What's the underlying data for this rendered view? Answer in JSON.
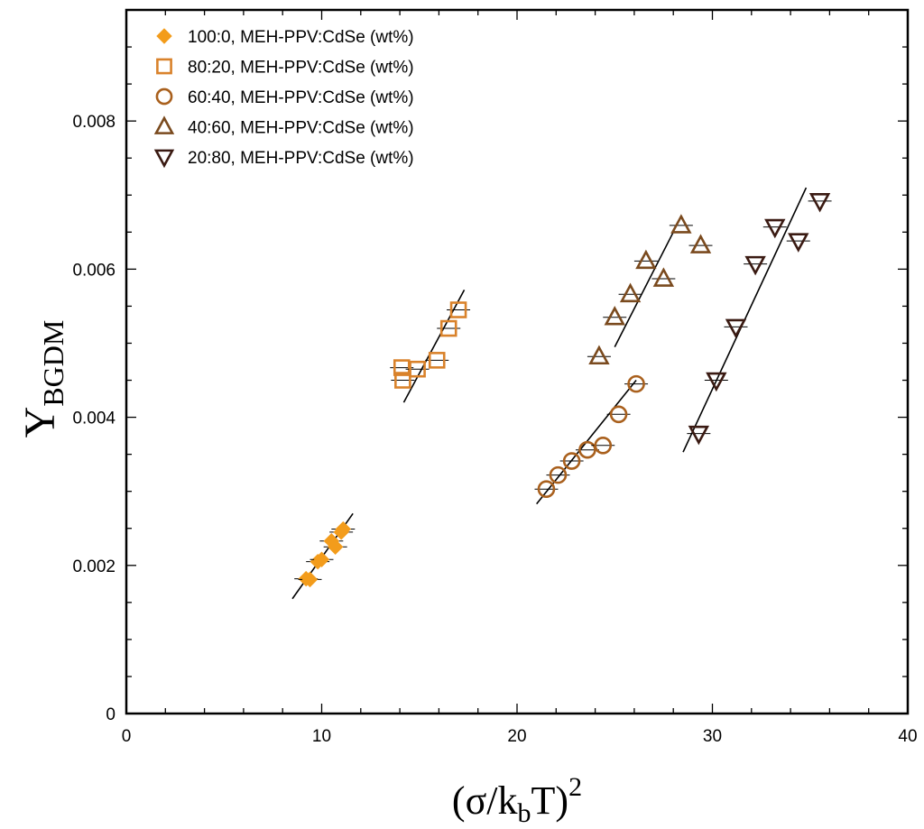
{
  "chart_data": {
    "type": "scatter",
    "title": "",
    "xlabel": {
      "main": "(σ/k",
      "sub": "b",
      "tail": "T)",
      "sup": "2"
    },
    "ylabel": {
      "main": "Υ",
      "sub": "BGDM"
    },
    "xlim": [
      0,
      40
    ],
    "ylim": [
      0,
      0.0095
    ],
    "x_ticks": [
      0,
      10,
      20,
      30,
      40
    ],
    "x_tick_labels": [
      "0",
      "10",
      "20",
      "30",
      "40"
    ],
    "y_ticks": [
      0,
      0.002,
      0.004,
      0.006,
      0.008
    ],
    "y_tick_labels": [
      "0",
      "0.002",
      "0.004",
      "0.006",
      "0.008"
    ],
    "legend_position": "top-left",
    "series": [
      {
        "name": "100:0, MEH-PPV:CdSe (wt%)",
        "marker": "diamond",
        "color": "#F39C1B",
        "filled": true,
        "points": [
          [
            9.2,
            0.00182
          ],
          [
            9.4,
            0.00181
          ],
          [
            9.8,
            0.00205
          ],
          [
            10.0,
            0.00208
          ],
          [
            10.5,
            0.00233
          ],
          [
            10.7,
            0.00225
          ],
          [
            11.0,
            0.00245
          ],
          [
            11.1,
            0.00249
          ]
        ],
        "fit": [
          [
            8.5,
            0.00155
          ],
          [
            11.6,
            0.0027
          ]
        ]
      },
      {
        "name": "80:20, MEH-PPV:CdSe (wt%)",
        "marker": "square",
        "color": "#D9822B",
        "filled": false,
        "points": [
          [
            14.1,
            0.00467
          ],
          [
            14.15,
            0.0045
          ],
          [
            14.9,
            0.00465
          ],
          [
            15.9,
            0.00477
          ],
          [
            16.5,
            0.0052
          ],
          [
            17.0,
            0.00545
          ]
        ],
        "fit": [
          [
            14.2,
            0.0042
          ],
          [
            17.3,
            0.00572
          ]
        ]
      },
      {
        "name": "60:40, MEH-PPV:CdSe (wt%)",
        "marker": "circle",
        "color": "#A9601D",
        "filled": false,
        "points": [
          [
            21.5,
            0.00303
          ],
          [
            22.1,
            0.00322
          ],
          [
            22.8,
            0.00341
          ],
          [
            23.6,
            0.00356
          ],
          [
            24.4,
            0.00362
          ],
          [
            25.2,
            0.00404
          ],
          [
            26.1,
            0.00445
          ]
        ],
        "fit": [
          [
            21.0,
            0.00283
          ],
          [
            26.1,
            0.0045
          ]
        ]
      },
      {
        "name": "40:60, MEH-PPV:CdSe (wt%)",
        "marker": "triangle-up",
        "color": "#7A4A1E",
        "filled": false,
        "points": [
          [
            24.2,
            0.00482
          ],
          [
            25.0,
            0.00535
          ],
          [
            25.8,
            0.00566
          ],
          [
            26.6,
            0.00611
          ],
          [
            27.5,
            0.00587
          ],
          [
            28.4,
            0.00659
          ],
          [
            29.4,
            0.00632
          ]
        ],
        "fit": [
          [
            25.0,
            0.00495
          ],
          [
            28.0,
            0.0065
          ]
        ]
      },
      {
        "name": "20:80, MEH-PPV:CdSe (wt%)",
        "marker": "triangle-down",
        "color": "#3A1A12",
        "filled": false,
        "points": [
          [
            29.3,
            0.00378
          ],
          [
            30.2,
            0.0045
          ],
          [
            31.2,
            0.00522
          ],
          [
            32.2,
            0.00607
          ],
          [
            33.2,
            0.00657
          ],
          [
            34.4,
            0.00638
          ],
          [
            35.5,
            0.00692
          ]
        ],
        "fit": [
          [
            28.5,
            0.00353
          ],
          [
            34.8,
            0.0071
          ]
        ]
      }
    ]
  }
}
